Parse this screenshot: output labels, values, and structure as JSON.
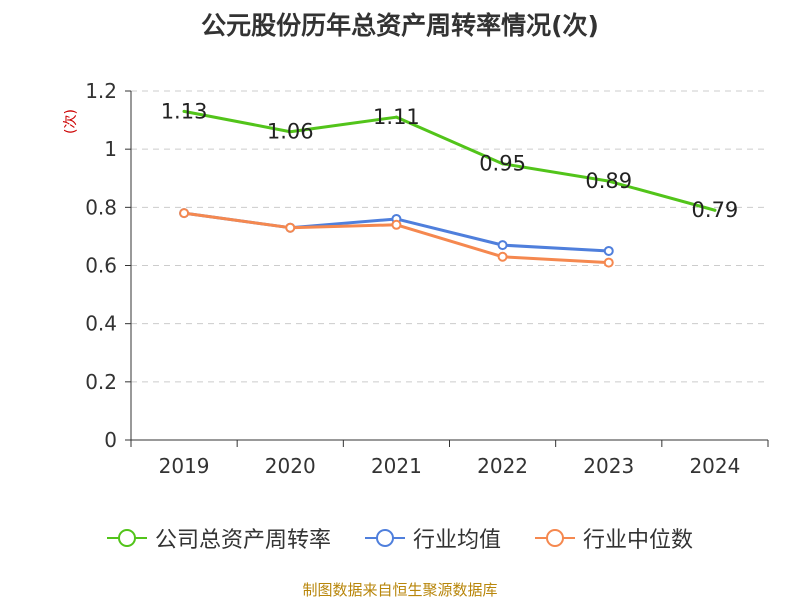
{
  "chart_data": {
    "type": "line",
    "title": "公元股份历年总资产周转率情况(次)",
    "ylabel": "(次)",
    "xlabel": "",
    "categories": [
      "2019",
      "2020",
      "2021",
      "2022",
      "2023",
      "2024"
    ],
    "ylim": [
      0,
      1.2
    ],
    "yticks": [
      0,
      0.2,
      0.4,
      0.6,
      0.8,
      1,
      1.2
    ],
    "ytick_labels": [
      "0",
      "0.2",
      "0.4",
      "0.6",
      "0.8",
      "1",
      "1.2"
    ],
    "grid": true,
    "legend_position": "bottom",
    "series": [
      {
        "name": "公司总资产周转率",
        "color": "#52c41a",
        "values": [
          1.13,
          1.06,
          1.11,
          0.95,
          0.89,
          0.79
        ],
        "labels": [
          "1.13",
          "1.06",
          "1.11",
          "0.95",
          "0.89",
          "0.79"
        ],
        "show_labels": true,
        "show_markers": false
      },
      {
        "name": "行业均值",
        "color": "#4f7fdc",
        "values": [
          0.78,
          0.73,
          0.76,
          0.67,
          0.65,
          null
        ],
        "show_labels": false,
        "show_markers": true
      },
      {
        "name": "行业中位数",
        "color": "#f5884f",
        "values": [
          0.78,
          0.73,
          0.74,
          0.63,
          0.61,
          null
        ],
        "show_labels": false,
        "show_markers": true
      }
    ]
  },
  "source": "制图数据来自恒生聚源数据库"
}
